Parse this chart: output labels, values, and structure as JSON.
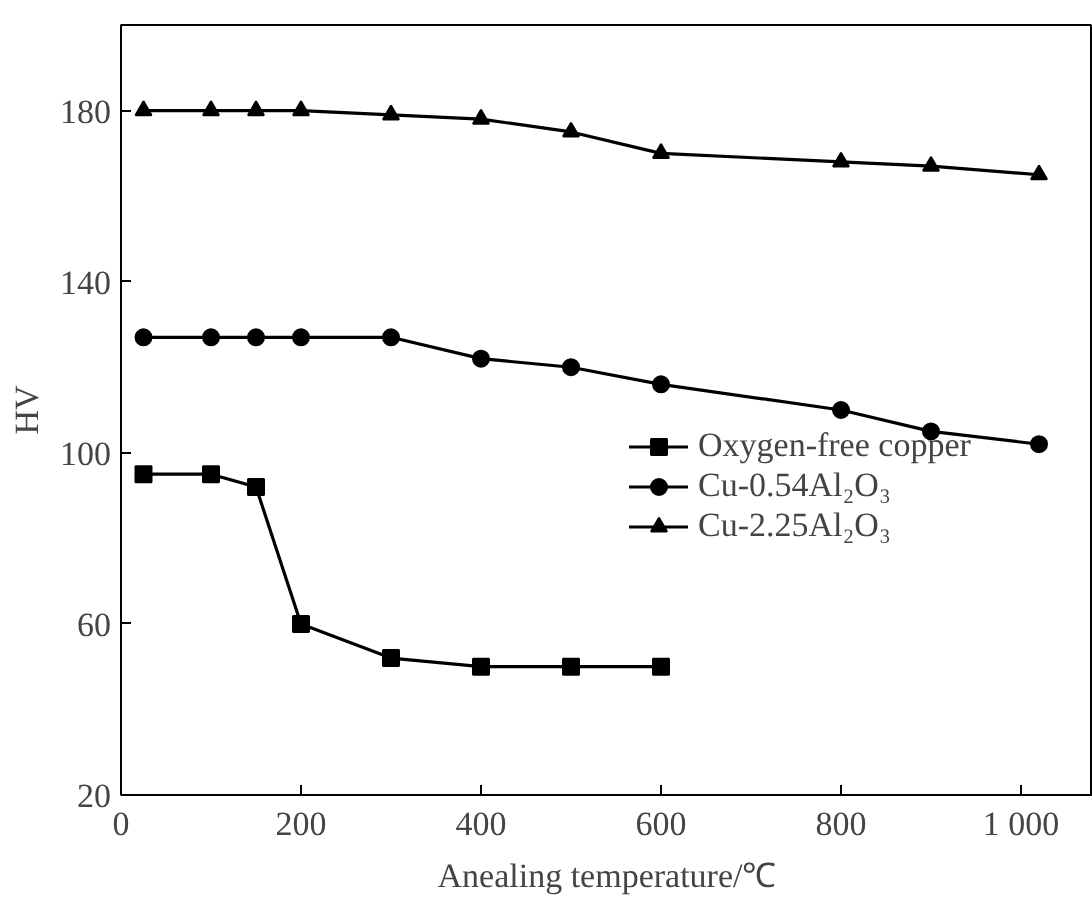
{
  "chart_data": {
    "type": "line",
    "xlabel": "Anealing temperature/℃",
    "ylabel": "HV",
    "xlim": [
      0,
      1080
    ],
    "ylim": [
      20,
      200
    ],
    "xticks": [
      0,
      200,
      400,
      600,
      800,
      {
        "value": 1000,
        "label": "1 000"
      }
    ],
    "yticks": [
      20,
      60,
      100,
      140,
      180
    ],
    "grid": false,
    "legend": "right",
    "line_style": "solid",
    "series": [
      {
        "name": "Oxygen-free copper",
        "color": "#000000",
        "marker": "square",
        "x": [
          25,
          100,
          150,
          200,
          300,
          400,
          500,
          600
        ],
        "values": [
          95,
          95,
          92,
          60,
          52,
          50,
          50,
          50
        ]
      },
      {
        "name": "Cu-0.54Al₂O₃",
        "color": "#000000",
        "marker": "circle",
        "x": [
          25,
          100,
          150,
          200,
          300,
          400,
          500,
          600,
          800,
          900,
          1020
        ],
        "values": [
          127,
          127,
          127,
          127,
          127,
          122,
          120,
          116,
          110,
          105,
          102
        ]
      },
      {
        "name": "Cu-2.25Al₂O₃",
        "color": "#000000",
        "marker": "triangle",
        "x": [
          25,
          100,
          150,
          200,
          300,
          400,
          500,
          600,
          800,
          900,
          1020
        ],
        "values": [
          180,
          180,
          180,
          180,
          179,
          178,
          175,
          170,
          168,
          167,
          165
        ]
      }
    ]
  }
}
